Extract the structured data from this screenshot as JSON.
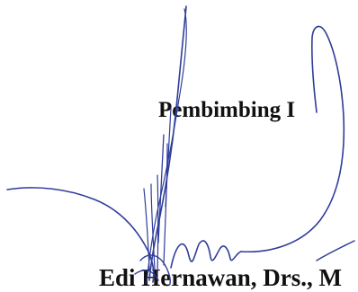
{
  "signature_block": {
    "role_title": "Pembimbing I",
    "signer_name": "Edi Hernawan, Drs., M"
  },
  "colors": {
    "ink_text": "#111111",
    "signature_ink": "#2f3d9a",
    "background": "#ffffff"
  },
  "icons": {
    "signature": "handwritten-signature"
  }
}
